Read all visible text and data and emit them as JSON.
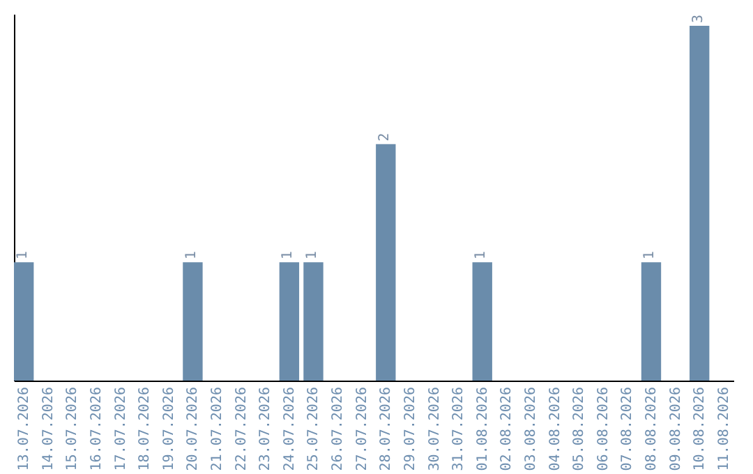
{
  "chart_data": {
    "type": "bar",
    "categories": [
      "13.07.2026",
      "14.07.2026",
      "15.07.2026",
      "16.07.2026",
      "17.07.2026",
      "18.07.2026",
      "19.07.2026",
      "20.07.2026",
      "21.07.2026",
      "22.07.2026",
      "23.07.2026",
      "24.07.2026",
      "25.07.2026",
      "26.07.2026",
      "27.07.2026",
      "28.07.2026",
      "29.07.2026",
      "30.07.2026",
      "31.07.2026",
      "01.08.2026",
      "02.08.2026",
      "03.08.2026",
      "04.08.2026",
      "05.08.2026",
      "06.08.2026",
      "07.08.2026",
      "08.08.2026",
      "09.08.2026",
      "10.08.2026",
      "11.08.2026"
    ],
    "values": [
      1,
      0,
      0,
      0,
      0,
      0,
      0,
      1,
      0,
      0,
      0,
      1,
      1,
      0,
      0,
      2,
      0,
      0,
      0,
      1,
      0,
      0,
      0,
      0,
      0,
      0,
      1,
      0,
      3,
      0
    ],
    "value_labels": [
      "1",
      null,
      null,
      null,
      null,
      null,
      null,
      "1",
      null,
      null,
      null,
      "1",
      "1",
      null,
      null,
      "2",
      null,
      null,
      null,
      "1",
      null,
      null,
      null,
      null,
      null,
      null,
      "1",
      null,
      "3",
      null
    ],
    "color": "#6a8cab",
    "ylim": [
      0,
      3.1
    ],
    "tick_labels": "x"
  }
}
